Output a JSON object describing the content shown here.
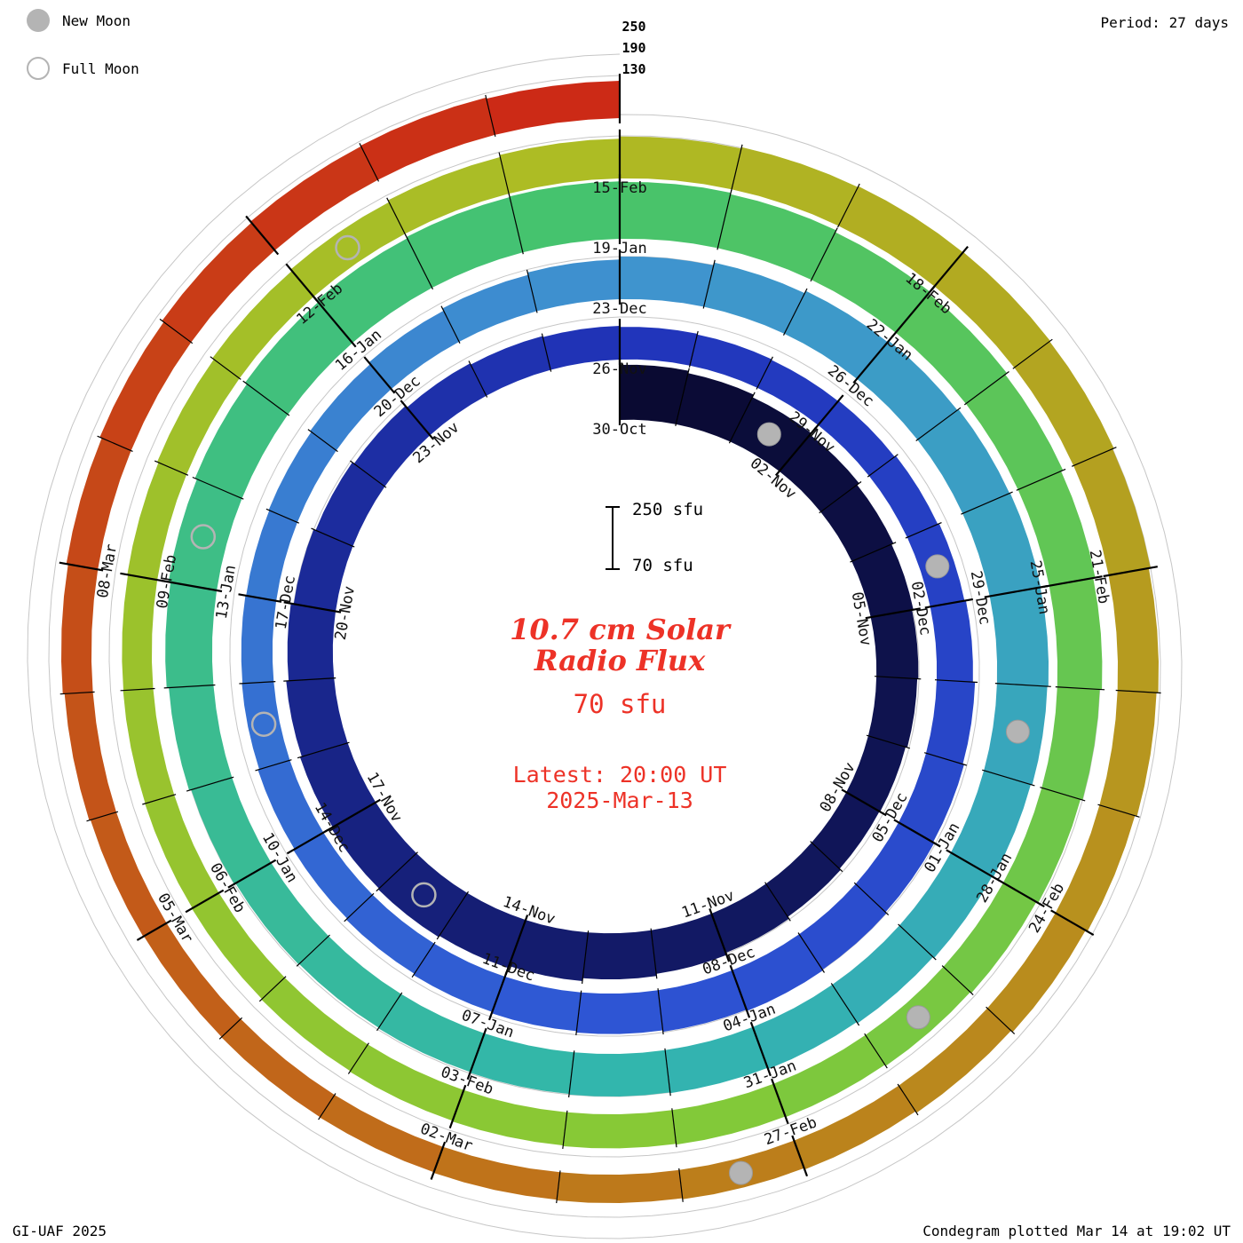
{
  "legend": {
    "new_moon": "New Moon",
    "full_moon": "Full Moon"
  },
  "header": {
    "period": "Period: 27 days"
  },
  "footer": {
    "credit": "GI-UAF 2025",
    "plotted": "Condegram plotted Mar 14 at 19:02 UT"
  },
  "center": {
    "scale_top": "250 sfu",
    "scale_bottom": "70 sfu",
    "title_line1": "10.7 cm Solar",
    "title_line2": "Radio Flux",
    "baseline": "70 sfu",
    "latest_line1": "Latest: 20:00 UT",
    "latest_line2": "2025-Mar-13"
  },
  "chart_data": {
    "type": "bar",
    "variant": "condegram spiral (polar bar chart, one revolution = 27 days, clockwise from top)",
    "title": "10.7 cm Solar Radio Flux",
    "units": "sfu",
    "period_days": 27,
    "baseline_sfu": 70,
    "gridlines_sfu": [
      130,
      190,
      250
    ],
    "radial_axis_labels": [
      "250",
      "190",
      "130"
    ],
    "start_date_label": "30-Oct",
    "latest_label": "2025-Mar-13 20:00 UT",
    "flux": [
      225,
      218,
      210,
      205,
      198,
      192,
      188,
      185,
      180,
      178,
      182,
      188,
      194,
      200,
      208,
      214,
      218,
      215,
      210,
      205,
      198,
      190,
      184,
      178,
      172,
      168,
      165,
      162,
      160,
      158,
      160,
      164,
      168,
      172,
      178,
      182,
      186,
      190,
      192,
      188,
      184,
      180,
      176,
      172,
      168,
      164,
      160,
      158,
      156,
      158,
      162,
      168,
      175,
      182,
      190,
      198,
      205,
      210,
      214,
      216,
      215,
      212,
      208,
      204,
      200,
      196,
      192,
      190,
      188,
      186,
      184,
      186,
      190,
      196,
      202,
      208,
      214,
      220,
      226,
      230,
      232,
      230,
      226,
      220,
      214,
      208,
      202,
      196,
      190,
      184,
      178,
      174,
      170,
      168,
      166,
      164,
      162,
      160,
      158,
      156,
      155,
      154,
      156,
      160,
      165,
      170,
      176,
      182,
      188,
      192,
      195,
      196,
      194,
      190,
      185,
      180,
      174,
      168,
      162,
      157,
      153,
      150,
      148,
      146,
      145,
      144,
      146,
      150,
      155,
      160,
      166,
      172,
      176,
      178,
      175
    ],
    "date_labels": [
      {
        "day": 0,
        "label": "30-Oct"
      },
      {
        "day": 3,
        "label": "02-Nov"
      },
      {
        "day": 6,
        "label": "05-Nov"
      },
      {
        "day": 9,
        "label": "08-Nov"
      },
      {
        "day": 12,
        "label": "11-Nov"
      },
      {
        "day": 15,
        "label": "14-Nov"
      },
      {
        "day": 18,
        "label": "17-Nov"
      },
      {
        "day": 21,
        "label": "20-Nov"
      },
      {
        "day": 24,
        "label": "23-Nov"
      },
      {
        "day": 27,
        "label": "26-Nov"
      },
      {
        "day": 30,
        "label": "29-Nov"
      },
      {
        "day": 33,
        "label": "02-Dec"
      },
      {
        "day": 36,
        "label": "05-Dec"
      },
      {
        "day": 39,
        "label": "08-Dec"
      },
      {
        "day": 42,
        "label": "11-Dec"
      },
      {
        "day": 45,
        "label": "14-Dec"
      },
      {
        "day": 48,
        "label": "17-Dec"
      },
      {
        "day": 51,
        "label": "20-Dec"
      },
      {
        "day": 54,
        "label": "23-Dec"
      },
      {
        "day": 57,
        "label": "26-Dec"
      },
      {
        "day": 60,
        "label": "29-Dec"
      },
      {
        "day": 63,
        "label": "01-Jan"
      },
      {
        "day": 66,
        "label": "04-Jan"
      },
      {
        "day": 69,
        "label": "07-Jan"
      },
      {
        "day": 72,
        "label": "10-Jan"
      },
      {
        "day": 75,
        "label": "13-Jan"
      },
      {
        "day": 78,
        "label": "16-Jan"
      },
      {
        "day": 81,
        "label": "19-Jan"
      },
      {
        "day": 84,
        "label": "22-Jan"
      },
      {
        "day": 87,
        "label": "25-Jan"
      },
      {
        "day": 90,
        "label": "28-Jan"
      },
      {
        "day": 93,
        "label": "31-Jan"
      },
      {
        "day": 96,
        "label": "03-Feb"
      },
      {
        "day": 99,
        "label": "06-Feb"
      },
      {
        "day": 102,
        "label": "09-Feb"
      },
      {
        "day": 105,
        "label": "12-Feb"
      },
      {
        "day": 108,
        "label": "15-Feb"
      },
      {
        "day": 111,
        "label": "18-Feb"
      },
      {
        "day": 114,
        "label": "21-Feb"
      },
      {
        "day": 117,
        "label": "24-Feb"
      },
      {
        "day": 120,
        "label": "27-Feb"
      },
      {
        "day": 123,
        "label": "02-Mar"
      },
      {
        "day": 126,
        "label": "05-Mar"
      },
      {
        "day": 129,
        "label": "08-Mar"
      }
    ],
    "new_moons": [
      {
        "day": 2,
        "label": "01-Nov"
      },
      {
        "day": 32,
        "label": "01-Dec"
      },
      {
        "day": 61,
        "label": "30-Dec"
      },
      {
        "day": 91,
        "label": "29-Jan"
      },
      {
        "day": 120,
        "label": "27-Feb"
      }
    ],
    "full_moons": [
      {
        "day": 16,
        "label": "15-Nov"
      },
      {
        "day": 46,
        "label": "15-Dec"
      },
      {
        "day": 75,
        "label": "13-Jan"
      },
      {
        "day": 105,
        "label": "12-Feb"
      }
    ],
    "colormap": [
      "#0a0a32",
      "#131b6a",
      "#2135bb",
      "#2e55d4",
      "#3f93cf",
      "#32b6ad",
      "#46c36c",
      "#86c936",
      "#aebc24",
      "#bd7b1b",
      "#cc2a16"
    ],
    "grid_color": "#c6c6c6",
    "tick_color": "#000000",
    "moon_color": "#b4b4b4",
    "accent_red": "#ed3227"
  }
}
